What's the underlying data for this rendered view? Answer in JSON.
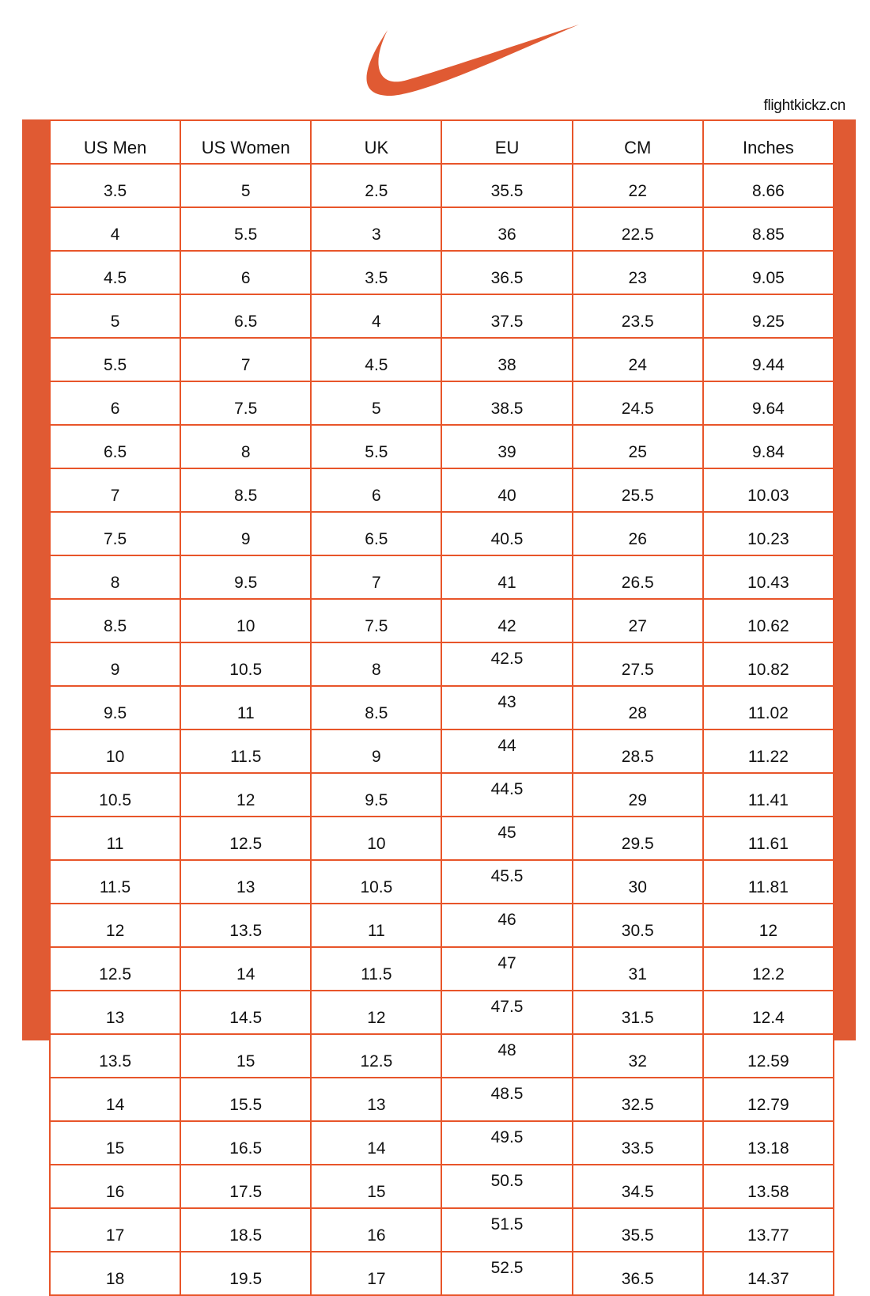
{
  "brand": {
    "logo": "Nike swoosh",
    "color": "#E05A33"
  },
  "watermark": "flightkickz.cn",
  "table": {
    "headers": [
      "US Men",
      "US Women",
      "UK",
      "EU",
      "CM",
      "Inches"
    ],
    "rows": [
      [
        "3.5",
        "5",
        "2.5",
        "35.5",
        "22",
        "8.66"
      ],
      [
        "4",
        "5.5",
        "3",
        "36",
        "22.5",
        "8.85"
      ],
      [
        "4.5",
        "6",
        "3.5",
        "36.5",
        "23",
        "9.05"
      ],
      [
        "5",
        "6.5",
        "4",
        "37.5",
        "23.5",
        "9.25"
      ],
      [
        "5.5",
        "7",
        "4.5",
        "38",
        "24",
        "9.44"
      ],
      [
        "6",
        "7.5",
        "5",
        "38.5",
        "24.5",
        "9.64"
      ],
      [
        "6.5",
        "8",
        "5.5",
        "39",
        "25",
        "9.84"
      ],
      [
        "7",
        "8.5",
        "6",
        "40",
        "25.5",
        "10.03"
      ],
      [
        "7.5",
        "9",
        "6.5",
        "40.5",
        "26",
        "10.23"
      ],
      [
        "8",
        "9.5",
        "7",
        "41",
        "26.5",
        "10.43"
      ],
      [
        "8.5",
        "10",
        "7.5",
        "42",
        "27",
        "10.62"
      ],
      [
        "9",
        "10.5",
        "8",
        "42.5",
        "27.5",
        "10.82"
      ],
      [
        "9.5",
        "11",
        "8.5",
        "43",
        "28",
        "11.02"
      ],
      [
        "10",
        "11.5",
        "9",
        "44",
        "28.5",
        "11.22"
      ],
      [
        "10.5",
        "12",
        "9.5",
        "44.5",
        "29",
        "11.41"
      ],
      [
        "11",
        "12.5",
        "10",
        "45",
        "29.5",
        "11.61"
      ],
      [
        "11.5",
        "13",
        "10.5",
        "45.5",
        "30",
        "11.81"
      ],
      [
        "12",
        "13.5",
        "11",
        "46",
        "30.5",
        "12"
      ],
      [
        "12.5",
        "14",
        "11.5",
        "47",
        "31",
        "12.2"
      ],
      [
        "13",
        "14.5",
        "12",
        "47.5",
        "31.5",
        "12.4"
      ],
      [
        "13.5",
        "15",
        "12.5",
        "48",
        "32",
        "12.59"
      ],
      [
        "14",
        "15.5",
        "13",
        "48.5",
        "32.5",
        "12.79"
      ],
      [
        "15",
        "16.5",
        "14",
        "49.5",
        "33.5",
        "13.18"
      ],
      [
        "16",
        "17.5",
        "15",
        "50.5",
        "34.5",
        "13.58"
      ],
      [
        "17",
        "18.5",
        "16",
        "51.5",
        "35.5",
        "13.77"
      ],
      [
        "18",
        "19.5",
        "17",
        "52.5",
        "36.5",
        "14.37"
      ]
    ]
  }
}
